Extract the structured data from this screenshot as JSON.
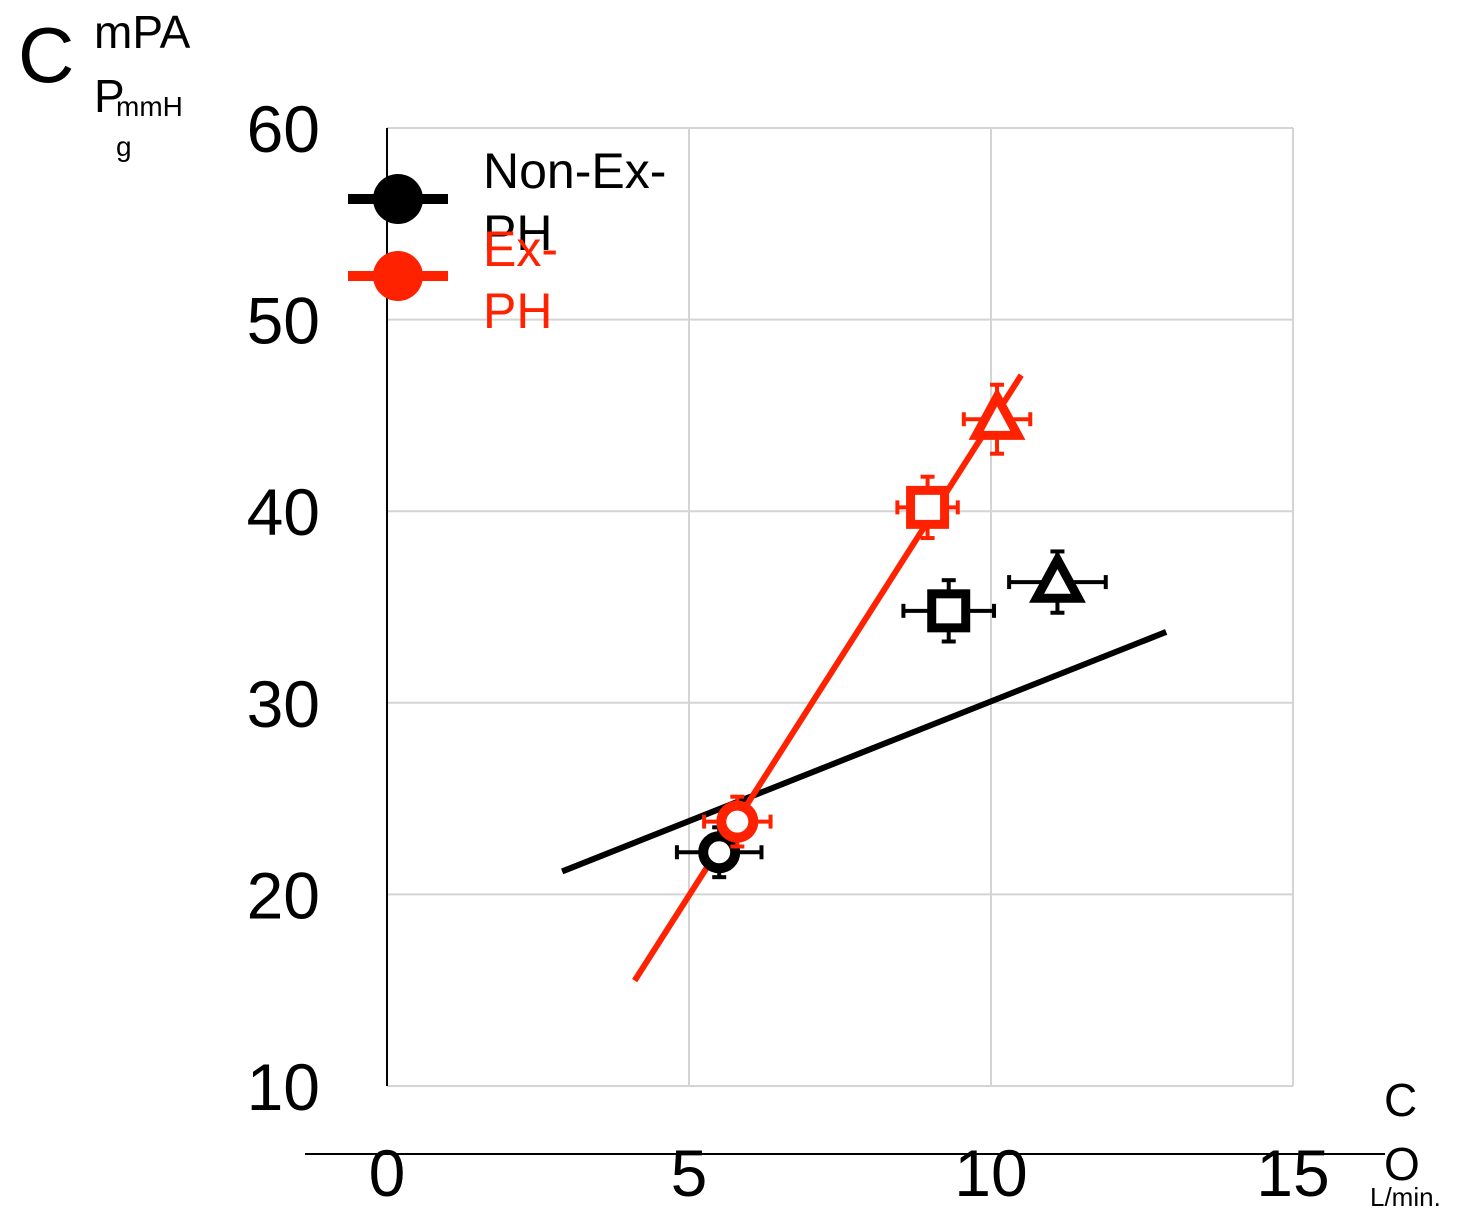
{
  "chart_data": {
    "type": "scatter",
    "title": "",
    "ylabel": {
      "main": "C",
      "sub1": "mPA",
      "sub2": "P",
      "sub3": "mmH",
      "sub4": "g"
    },
    "xlabel": {
      "l1": "C",
      "l2": "O",
      "unit": "L/min."
    },
    "xlim": [
      0,
      15
    ],
    "ylim": [
      10,
      60
    ],
    "x_ticks": [
      "0",
      "5",
      "10",
      "15"
    ],
    "y_ticks": [
      "10",
      "20",
      "30",
      "40",
      "50",
      "60"
    ],
    "x_tick_values": [
      0,
      5,
      10,
      15
    ],
    "y_tick_values": [
      10,
      20,
      30,
      40,
      50,
      60
    ],
    "grid": true,
    "legend_position": "top-left",
    "series": [
      {
        "name": "Non-Ex-PH",
        "name_lines": [
          "Non-Ex-",
          "PH"
        ],
        "color": "#000000",
        "points": [
          {
            "x": 5.5,
            "y": 22.2,
            "xerr": 0.7,
            "yerr": 1.3,
            "marker": "circle"
          },
          {
            "x": 9.3,
            "y": 34.8,
            "xerr": 0.75,
            "yerr": 1.6,
            "marker": "square"
          },
          {
            "x": 11.1,
            "y": 36.3,
            "xerr": 0.8,
            "yerr": 1.6,
            "marker": "triangle"
          }
        ],
        "fit_line": [
          [
            2.9,
            21.2
          ],
          [
            12.9,
            33.7
          ]
        ]
      },
      {
        "name": "Ex-PH",
        "name_lines": [
          "Ex-",
          "PH"
        ],
        "color": "#ff2200",
        "points": [
          {
            "x": 5.8,
            "y": 23.8,
            "xerr": 0.55,
            "yerr": 1.3,
            "marker": "circle"
          },
          {
            "x": 8.95,
            "y": 40.2,
            "xerr": 0.5,
            "yerr": 1.6,
            "marker": "square"
          },
          {
            "x": 10.1,
            "y": 44.8,
            "xerr": 0.55,
            "yerr": 1.8,
            "marker": "triangle"
          }
        ],
        "fit_line": [
          [
            4.1,
            15.5
          ],
          [
            10.5,
            47.1
          ]
        ]
      }
    ]
  }
}
